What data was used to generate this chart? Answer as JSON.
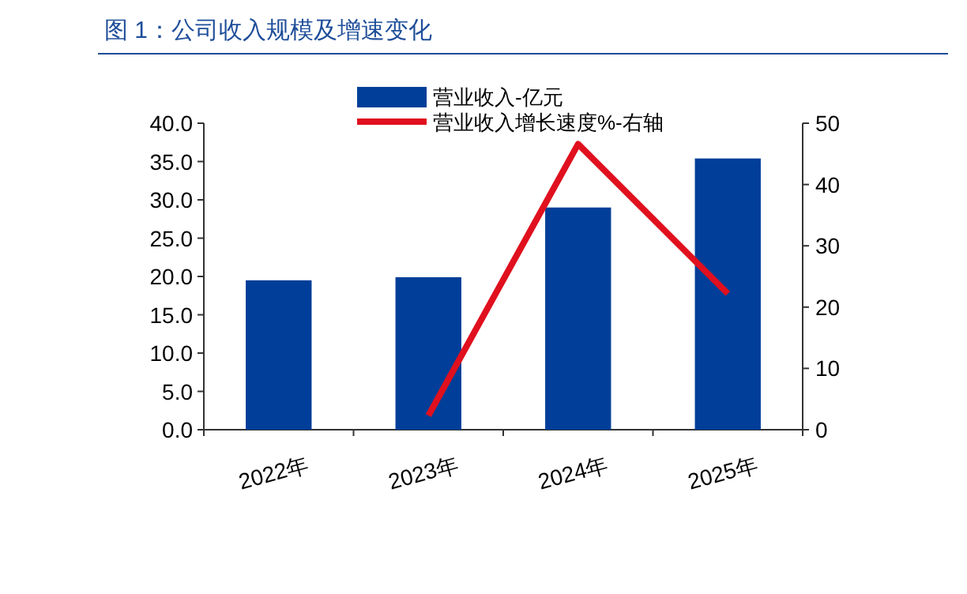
{
  "chart_data": {
    "type": "bar",
    "title": "图 1：公司收入规模及增速变化",
    "categories": [
      "2022年",
      "2023年",
      "2024年",
      "2025年"
    ],
    "series": [
      {
        "name": "营业收入-亿元",
        "color": "#003e99",
        "values": [
          19.5,
          19.9,
          29.0,
          35.4
        ]
      },
      {
        "name": "营业收入增长速度%-右轴",
        "type": "line",
        "axis": "y2",
        "color": "#e0101e",
        "values": [
          null,
          2.3,
          46.6,
          22.2
        ]
      }
    ],
    "ylim": [
      0,
      40
    ],
    "yticks": [
      {
        "value": 0,
        "label": "0.0"
      },
      {
        "value": 5,
        "label": "5.0"
      },
      {
        "value": 10,
        "label": "10.0"
      },
      {
        "value": 15,
        "label": "15.0"
      },
      {
        "value": 20,
        "label": "20.0"
      },
      {
        "value": 25,
        "label": "25.0"
      },
      {
        "value": 30,
        "label": "30.0"
      },
      {
        "value": 35,
        "label": "35.0"
      },
      {
        "value": 40,
        "label": "40.0"
      }
    ],
    "y2lim": [
      0,
      50
    ],
    "y2ticks": [
      0,
      10,
      20,
      30,
      40,
      50
    ],
    "legend": "top",
    "grid": false
  }
}
